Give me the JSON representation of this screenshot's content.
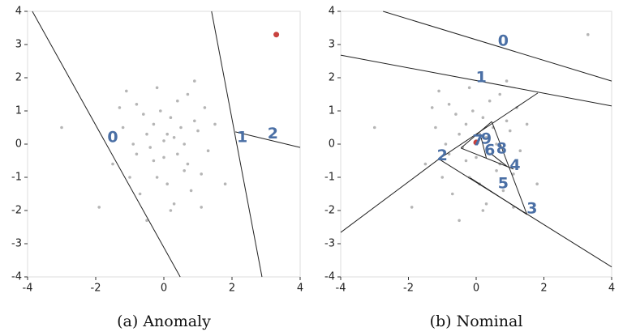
{
  "chart_data": [
    {
      "type": "scatter",
      "caption": "(a) Anomaly",
      "xlim": [
        -4,
        4
      ],
      "ylim": [
        -4,
        4
      ],
      "xticks": [
        -4,
        -2,
        0,
        2,
        4
      ],
      "yticks": [
        -4,
        -3,
        -2,
        -1,
        0,
        1,
        2,
        3,
        4
      ],
      "points": {
        "color": "#b5b5b5",
        "x": [
          -1.2,
          -0.8,
          -0.5,
          -0.3,
          0,
          0.2,
          0.4,
          0.7,
          1.0,
          1.3,
          -1.5,
          -1.0,
          -0.6,
          -0.2,
          0.1,
          0.3,
          0.6,
          0.9,
          1.2,
          -0.9,
          -0.4,
          0.0,
          0.5,
          0.8,
          -1.3,
          -0.7,
          -0.1,
          0.3,
          0.6,
          1.1,
          -3.0,
          -1.9,
          1.8,
          -0.5,
          0.2,
          0.9,
          -1.1,
          0.4,
          -0.3,
          0.7,
          -0.8,
          1.5,
          -0.2,
          0.1,
          1.1
        ],
        "y": [
          0.5,
          1.2,
          0.3,
          -0.5,
          0.1,
          0.8,
          -0.3,
          1.5,
          0.4,
          -0.2,
          -0.6,
          -1.0,
          0.9,
          1.7,
          -1.2,
          0.2,
          -0.8,
          0.7,
          1.1,
          0.0,
          -0.1,
          -0.4,
          0.5,
          -1.4,
          1.1,
          -1.5,
          1.0,
          -1.8,
          0.0,
          -0.9,
          0.5,
          -1.9,
          -1.2,
          -2.3,
          -2.0,
          1.9,
          1.6,
          1.3,
          0.6,
          -0.6,
          -0.3,
          0.6,
          -1.0,
          0.3,
          -1.9
        ]
      },
      "highlight": {
        "color": "#c8423f",
        "x": [
          3.3
        ],
        "y": [
          3.3
        ]
      },
      "line_color": "#222",
      "segments": [
        {
          "x": [
            -3.86,
            0.48
          ],
          "y": [
            4,
            -4
          ]
        },
        {
          "x": [
            1.4,
            2.88
          ],
          "y": [
            4,
            -4
          ]
        },
        {
          "x": [
            2.1,
            4
          ],
          "y": [
            0.37,
            -0.1
          ]
        }
      ],
      "annotations": [
        {
          "text": "0",
          "x": -1.5,
          "y": 0.2
        },
        {
          "text": "1",
          "x": 2.3,
          "y": 0.2
        },
        {
          "text": "2",
          "x": 3.2,
          "y": 0.3
        }
      ]
    },
    {
      "type": "scatter",
      "caption": "(b) Nominal",
      "xlim": [
        -4,
        4
      ],
      "ylim": [
        -4,
        4
      ],
      "xticks": [
        -4,
        -2,
        0,
        2,
        4
      ],
      "yticks": [
        -4,
        -3,
        -2,
        -1,
        0,
        1,
        2,
        3,
        4
      ],
      "points": {
        "color": "#b5b5b5",
        "x": [
          -1.2,
          -0.8,
          -0.5,
          -0.3,
          0,
          0.2,
          0.4,
          0.7,
          1.0,
          1.3,
          -1.5,
          -1.0,
          -0.6,
          -0.2,
          0.1,
          0.3,
          0.6,
          0.9,
          1.2,
          -0.9,
          -0.4,
          0.0,
          0.5,
          0.8,
          -1.3,
          -0.7,
          -0.1,
          0.3,
          0.6,
          1.1,
          -3.0,
          -1.9,
          1.8,
          -0.5,
          0.2,
          0.9,
          -1.1,
          0.4,
          -0.3,
          0.7,
          -0.8,
          1.5,
          -0.2,
          0.1,
          1.1,
          3.3
        ],
        "y": [
          0.5,
          1.2,
          0.3,
          -0.5,
          0.1,
          0.8,
          -0.3,
          1.5,
          0.4,
          -0.2,
          -0.6,
          -1.0,
          0.9,
          1.7,
          -1.2,
          0.2,
          -0.8,
          0.7,
          1.1,
          0.0,
          -0.1,
          -0.4,
          0.5,
          -1.4,
          1.1,
          -1.5,
          1.0,
          -1.8,
          0.0,
          -0.9,
          0.5,
          -1.9,
          -1.2,
          -2.3,
          -2.0,
          1.9,
          1.6,
          1.3,
          0.6,
          -0.6,
          -0.3,
          0.6,
          -1.0,
          0.3,
          -1.9,
          3.3
        ]
      },
      "highlight": {
        "color": "#c8423f",
        "x": [
          0
        ],
        "y": [
          0.05
        ]
      },
      "line_color": "#222",
      "segments": [
        {
          "x": [
            -2.75,
            4
          ],
          "y": [
            4,
            1.9
          ]
        },
        {
          "x": [
            -4,
            4
          ],
          "y": [
            2.68,
            1.15
          ]
        },
        {
          "x": [
            -4,
            -1.1,
            1.82
          ],
          "y": [
            -2.66,
            -0.45,
            1.54
          ]
        },
        {
          "x": [
            -1.1,
            4
          ],
          "y": [
            -0.45,
            -3.7
          ]
        },
        {
          "x": [
            -0.45,
            0.46
          ],
          "y": [
            -0.12,
            0.68
          ]
        },
        {
          "x": [
            0.46,
            1.5
          ],
          "y": [
            0.68,
            -2.12
          ]
        },
        {
          "x": [
            -0.17,
            1.5
          ],
          "y": [
            -1.02,
            -2.12
          ]
        },
        {
          "x": [
            -0.45,
            1.1
          ],
          "y": [
            -0.12,
            -0.75
          ]
        },
        {
          "x": [
            0.12,
            0.3
          ],
          "y": [
            0.3,
            -0.42
          ]
        },
        {
          "x": [
            0.45,
            0.9
          ],
          "y": [
            -0.3,
            -0.66
          ]
        }
      ],
      "annotations": [
        {
          "text": "0",
          "x": 0.8,
          "y": 3.1
        },
        {
          "text": "1",
          "x": 0.15,
          "y": 2.0
        },
        {
          "text": "2",
          "x": -1.0,
          "y": -0.35
        },
        {
          "text": "3",
          "x": 1.65,
          "y": -1.95
        },
        {
          "text": "4",
          "x": 1.15,
          "y": -0.65
        },
        {
          "text": "5",
          "x": 0.8,
          "y": -1.2
        },
        {
          "text": "6",
          "x": 0.4,
          "y": -0.2
        },
        {
          "text": "7",
          "x": 0.05,
          "y": 0.1
        },
        {
          "text": "8",
          "x": 0.75,
          "y": -0.15
        },
        {
          "text": "9",
          "x": 0.3,
          "y": 0.15
        }
      ]
    }
  ]
}
